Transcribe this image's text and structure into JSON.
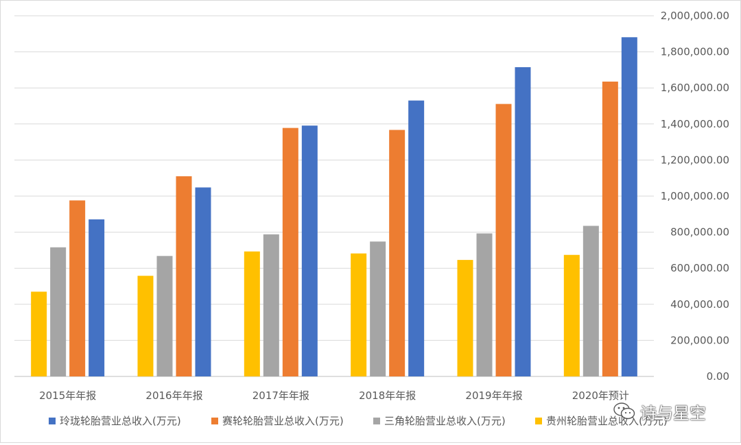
{
  "chart_data": {
    "type": "bar",
    "title": "",
    "xlabel": "",
    "ylabel": "",
    "categories": [
      "2015年年报",
      "2016年年报",
      "2017年年报",
      "2018年年报",
      "2019年年报",
      "2020年预计"
    ],
    "ylim": [
      0,
      2000000
    ],
    "y_ticks": [
      "0.00",
      "200,000.00",
      "400,000.00",
      "600,000.00",
      "800,000.00",
      "1,000,000.00",
      "1,200,000.00",
      "1,400,000.00",
      "1,600,000.00",
      "1,800,000.00",
      "2,000,000.00"
    ],
    "y_axis_position": "right",
    "grid": true,
    "legend_position": "bottom",
    "series": [
      {
        "name": "贵州轮胎营业总收入(万元)",
        "color": "#ffc000",
        "values": [
          470000,
          558000,
          693000,
          682000,
          646000,
          674000
        ]
      },
      {
        "name": "三角轮胎营业总收入(万元)",
        "color": "#a5a5a5",
        "values": [
          716000,
          668000,
          788000,
          748000,
          793000,
          835000
        ]
      },
      {
        "name": "赛轮轮胎营业总收入(万元)",
        "color": "#ed7d31",
        "values": [
          976000,
          1110000,
          1378000,
          1367000,
          1511000,
          1635000
        ]
      },
      {
        "name": "玲珑轮胎营业总收入(万元)",
        "color": "#4472c4",
        "values": [
          871000,
          1048000,
          1391000,
          1530000,
          1715000,
          1881000
        ]
      }
    ],
    "legend_order": [
      "玲珑轮胎营业总收入(万元)",
      "赛轮轮胎营业总收入(万元)",
      "三角轮胎营业总收入(万元)",
      "贵州轮胎营业总收入(万元)"
    ]
  },
  "watermark": {
    "text": "诗与星空",
    "icon": "wechat-icon"
  }
}
